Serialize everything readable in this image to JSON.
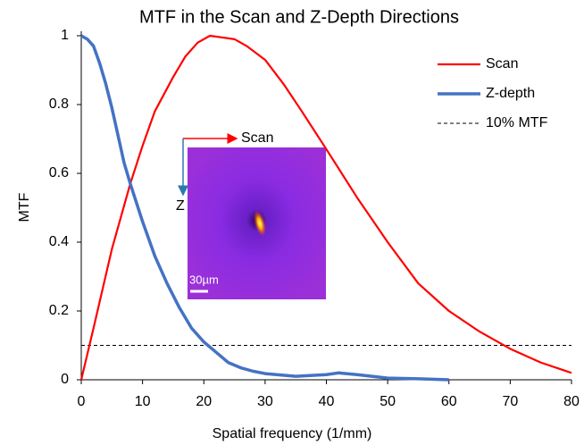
{
  "chart_data": {
    "type": "line",
    "title": "MTF in the Scan and Z-Depth Directions",
    "x_label": "Spatial frequency (1/mm)",
    "y_label": "MTF",
    "xlim": [
      0,
      80
    ],
    "xticks": [
      0,
      10,
      20,
      30,
      40,
      50,
      60,
      70,
      80
    ],
    "ylim": [
      0,
      1
    ],
    "yticks": [
      0,
      0.2,
      0.4,
      0.6,
      0.8,
      1
    ],
    "grid": false,
    "legend": "top-right",
    "series": [
      {
        "name": "Scan",
        "color": "#ff0000",
        "x": [
          0,
          2,
          5,
          8,
          10,
          12,
          15,
          17,
          19,
          21,
          23,
          25,
          27,
          30,
          33,
          36,
          40,
          45,
          50,
          55,
          60,
          65,
          70,
          75,
          80
        ],
        "values": [
          0,
          0.15,
          0.38,
          0.57,
          0.68,
          0.78,
          0.88,
          0.94,
          0.98,
          1.0,
          0.995,
          0.99,
          0.97,
          0.93,
          0.86,
          0.78,
          0.67,
          0.53,
          0.4,
          0.28,
          0.2,
          0.14,
          0.09,
          0.05,
          0.02
        ]
      },
      {
        "name": "Z-depth",
        "color": "#4472c4",
        "x": [
          0,
          1,
          2,
          3,
          4,
          5,
          6,
          7,
          8,
          10,
          12,
          14,
          16,
          18,
          20,
          22,
          24,
          26,
          28,
          30,
          35,
          40,
          42,
          45,
          50,
          55,
          60
        ],
        "values": [
          1.0,
          0.99,
          0.97,
          0.92,
          0.86,
          0.79,
          0.71,
          0.63,
          0.57,
          0.46,
          0.36,
          0.28,
          0.21,
          0.15,
          0.11,
          0.08,
          0.05,
          0.035,
          0.025,
          0.018,
          0.01,
          0.015,
          0.02,
          0.015,
          0.005,
          0.003,
          0
        ]
      }
    ],
    "reference_lines": [
      {
        "name": "10% MTF",
        "value": 0.1,
        "color": "#000000"
      }
    ],
    "inset": {
      "scan_label": "Scan",
      "z_label": "Z",
      "scale_label": "30µm"
    }
  }
}
